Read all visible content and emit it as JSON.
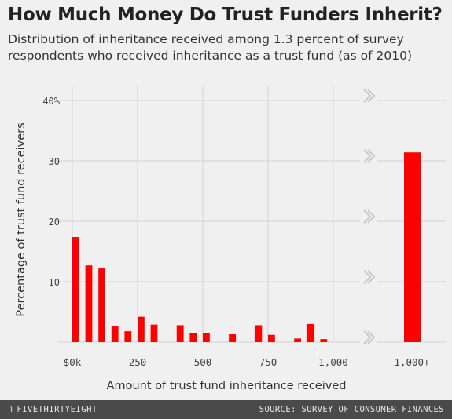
{
  "chart_data": {
    "type": "bar",
    "title": "How Much Money Do Trust Funders Inherit?",
    "subtitle": "Distribution of inheritance received among 1.3 percent of survey respondents who received inheritance as a trust fund (as of 2010)",
    "xlabel": "Amount of trust fund inheritance received",
    "ylabel": "Percentage of trust fund receivers",
    "ylim": [
      0,
      40
    ],
    "xlim": [
      0,
      1000
    ],
    "y_ticks": [
      {
        "value": 10,
        "label": "10"
      },
      {
        "value": 20,
        "label": "20"
      },
      {
        "value": 30,
        "label": "30"
      },
      {
        "value": 40,
        "label": "40%"
      }
    ],
    "x_ticks": [
      {
        "value": 0,
        "label": "$0k"
      },
      {
        "value": 250,
        "label": "250"
      },
      {
        "value": 500,
        "label": "500"
      },
      {
        "value": 750,
        "label": "750"
      },
      {
        "value": 1000,
        "label": "1,000"
      }
    ],
    "bin_width": 25,
    "bins": [
      {
        "x": 0,
        "value": 17.4
      },
      {
        "x": 50,
        "value": 12.7
      },
      {
        "x": 100,
        "value": 12.2
      },
      {
        "x": 150,
        "value": 2.7
      },
      {
        "x": 200,
        "value": 1.8
      },
      {
        "x": 250,
        "value": 4.2
      },
      {
        "x": 300,
        "value": 2.9
      },
      {
        "x": 400,
        "value": 2.8
      },
      {
        "x": 450,
        "value": 1.5
      },
      {
        "x": 500,
        "value": 1.5
      },
      {
        "x": 600,
        "value": 1.3
      },
      {
        "x": 700,
        "value": 2.8
      },
      {
        "x": 750,
        "value": 1.2
      },
      {
        "x": 850,
        "value": 0.6
      },
      {
        "x": 900,
        "value": 3.0
      },
      {
        "x": 950,
        "value": 0.5
      }
    ],
    "overflow_bar": {
      "label": "1,000+",
      "value": 31.4
    },
    "bar_color": "#ff0000",
    "grid": true
  },
  "footer": {
    "brand": "FIVETHIRTYEIGHT",
    "source": "SOURCE: SURVEY OF CONSUMER FINANCES"
  }
}
